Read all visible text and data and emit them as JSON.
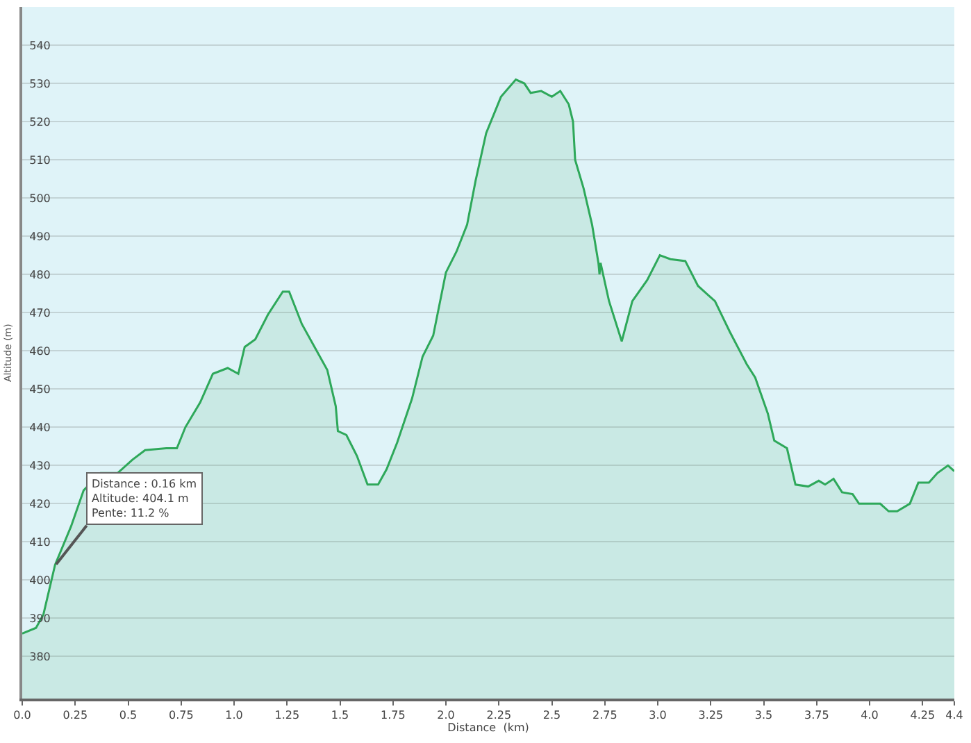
{
  "chart_data": {
    "type": "area",
    "xlabel": "Distance  (km)",
    "ylabel": "Altitude (m)",
    "x": [
      0,
      0.065,
      0.1,
      0.155,
      0.23,
      0.29,
      0.37,
      0.45,
      0.52,
      0.58,
      0.68,
      0.73,
      0.77,
      0.84,
      0.9,
      0.97,
      1.02,
      1.05,
      1.1,
      1.16,
      1.23,
      1.26,
      1.32,
      1.39,
      1.44,
      1.48,
      1.49,
      1.53,
      1.58,
      1.63,
      1.68,
      1.72,
      1.77,
      1.84,
      1.89,
      1.94,
      2.0,
      2.05,
      2.1,
      2.14,
      2.19,
      2.26,
      2.33,
      2.37,
      2.4,
      2.45,
      2.5,
      2.54,
      2.58,
      2.6,
      2.61,
      2.65,
      2.69,
      2.72,
      2.725,
      2.73,
      2.77,
      2.83,
      2.88,
      2.95,
      3.01,
      3.06,
      3.13,
      3.19,
      3.27,
      3.34,
      3.42,
      3.46,
      3.52,
      3.55,
      3.61,
      3.65,
      3.71,
      3.76,
      3.79,
      3.83,
      3.87,
      3.92,
      3.95,
      4.05,
      4.09,
      4.13,
      4.19,
      4.23,
      4.28,
      4.32,
      4.37,
      4.4
    ],
    "series": [
      {
        "color": "#2ea85a",
        "values": [
          386,
          387.5,
          391,
          404,
          414,
          423.5,
          428,
          428,
          431.5,
          434,
          434.5,
          434.5,
          440,
          446.5,
          454,
          455.5,
          454,
          461,
          463,
          469.5,
          475.5,
          475.5,
          467,
          460,
          455,
          445.5,
          439,
          438,
          432.5,
          425,
          425,
          429,
          436,
          447.5,
          458.5,
          464,
          480.5,
          486,
          493,
          504.5,
          517,
          526.5,
          531,
          530,
          527.5,
          528,
          526.5,
          528,
          524.5,
          520,
          510,
          502.5,
          493,
          483,
          480,
          483,
          473,
          462.5,
          473,
          478.5,
          485,
          484,
          483.5,
          477,
          473,
          465,
          456.5,
          453,
          443.5,
          436.5,
          434.5,
          425,
          424.5,
          426,
          425,
          426.5,
          423,
          422.5,
          420,
          420,
          418,
          418,
          420,
          425.5,
          425.5,
          428,
          430,
          428.5
        ]
      }
    ],
    "xlim": [
      0,
      4.4
    ],
    "ylim": [
      369,
      550
    ],
    "xticks": [
      {
        "value": 0,
        "label": "0.0"
      },
      0.25,
      0.5,
      0.75,
      {
        "value": 1,
        "label": "1.0"
      },
      1.25,
      1.5,
      1.75,
      {
        "value": 2,
        "label": "2.0"
      },
      2.25,
      2.5,
      2.75,
      {
        "value": 3,
        "label": "3.0"
      },
      3.25,
      3.5,
      3.75,
      {
        "value": 4,
        "label": "4.0"
      },
      4.25,
      4.4
    ],
    "yticks": [
      380,
      390,
      400,
      410,
      420,
      430,
      440,
      450,
      460,
      470,
      480,
      490,
      500,
      510,
      520,
      530,
      540
    ],
    "grid": "y",
    "annotations": [
      {
        "text": "Distance : 0.16 km\nAltitude: 404.1 m\nPente: 11.2 %",
        "x": 0.16,
        "y": 404.1
      }
    ]
  }
}
